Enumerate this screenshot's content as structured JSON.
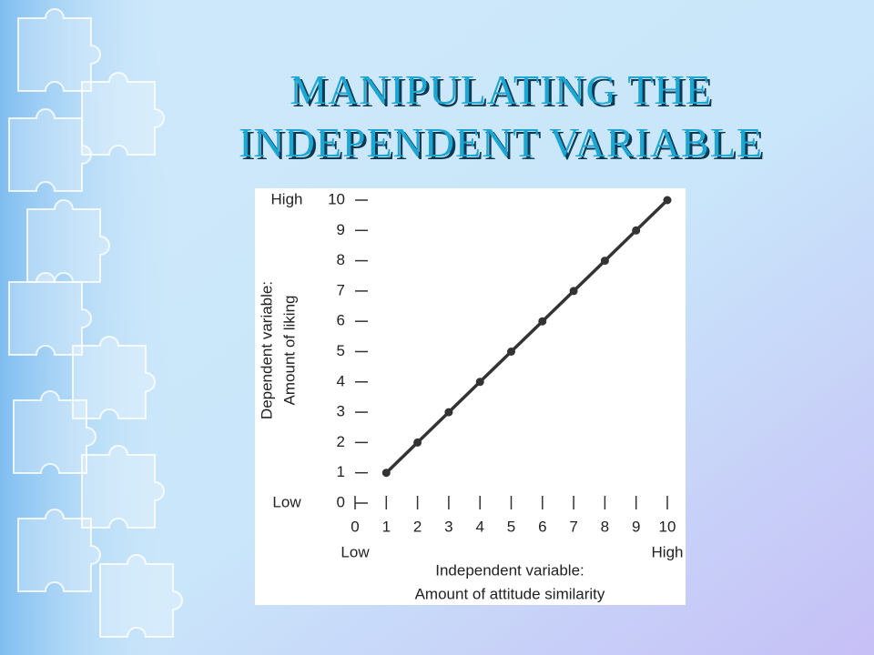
{
  "title": [
    "MANIPULATING THE",
    "INDEPENDENT VARIABLE"
  ],
  "chart_data": {
    "type": "line",
    "x": [
      1,
      2,
      3,
      4,
      5,
      6,
      7,
      8,
      9,
      10
    ],
    "series": [
      {
        "color": "#333333",
        "values": [
          1,
          2,
          3,
          4,
          5,
          6,
          7,
          8,
          9,
          10
        ]
      }
    ],
    "xlim": [
      0,
      10
    ],
    "xticks": [
      0,
      1,
      2,
      3,
      4,
      5,
      6,
      7,
      8,
      9,
      10
    ],
    "ylim": [
      0,
      10
    ],
    "yticks": [
      0,
      1,
      2,
      3,
      4,
      5,
      6,
      7,
      8,
      9,
      10
    ],
    "xlabel": [
      "Independent variable:",
      "Amount of attitude similarity"
    ],
    "ylabel": [
      "Dependent variable:",
      "Amount of liking"
    ],
    "x_end_labels": [
      "Low",
      "High"
    ],
    "y_end_labels": [
      "Low",
      "High"
    ]
  }
}
